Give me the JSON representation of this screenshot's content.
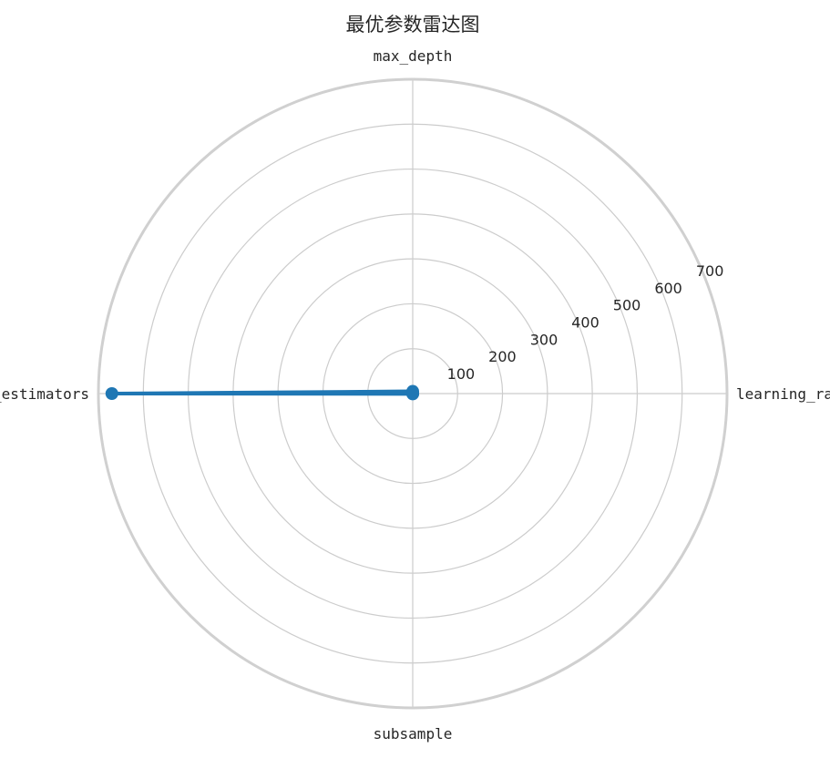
{
  "chart_data": {
    "type": "radar",
    "title": "最优参数雷达图",
    "categories": [
      "learning_rate",
      "max_depth",
      "n_estimators",
      "subsample"
    ],
    "series": [
      {
        "values": [
          0.1,
          5,
          670,
          0.8
        ],
        "color": "#1f77b4"
      }
    ],
    "rlim": [
      0,
      700
    ],
    "r_ticks": [
      "100",
      "200",
      "300",
      "400",
      "500",
      "600",
      "700"
    ],
    "grid": true
  }
}
